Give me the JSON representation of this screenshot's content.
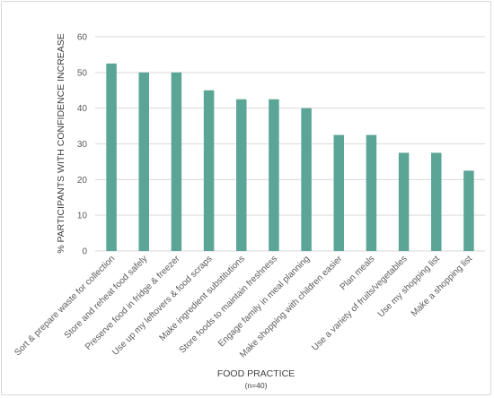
{
  "chart_data": {
    "type": "bar",
    "categories": [
      "Sort & prepare waste for collection",
      "Store and reheat food safely",
      "Preserve food in fridge & freezer",
      "Use up my leftovers & food scraps",
      "Make ingredient substitutions",
      "Store foods to maintain freshness",
      "Engage family in meal planning",
      "Make shopping with children easier",
      "Plan meals",
      "Use a variety of fruits/vegetables",
      "Use my shopping list",
      "Make a shopping list"
    ],
    "values": [
      52.5,
      50,
      50,
      45,
      42.5,
      42.5,
      40,
      32.5,
      32.5,
      27.5,
      27.5,
      22.5
    ],
    "ylabel": "% PARTICIPANTS WITH CONFIDENCE INCREASE",
    "xlabel": "FOOD PRACTICE",
    "xlabel_sub": "(n=40)",
    "ylim": [
      0,
      60
    ],
    "yticks": [
      0,
      10,
      20,
      30,
      40,
      50,
      60
    ],
    "grid": true,
    "bar_color": "#5ba596",
    "grid_color": "#d9d9d9"
  }
}
